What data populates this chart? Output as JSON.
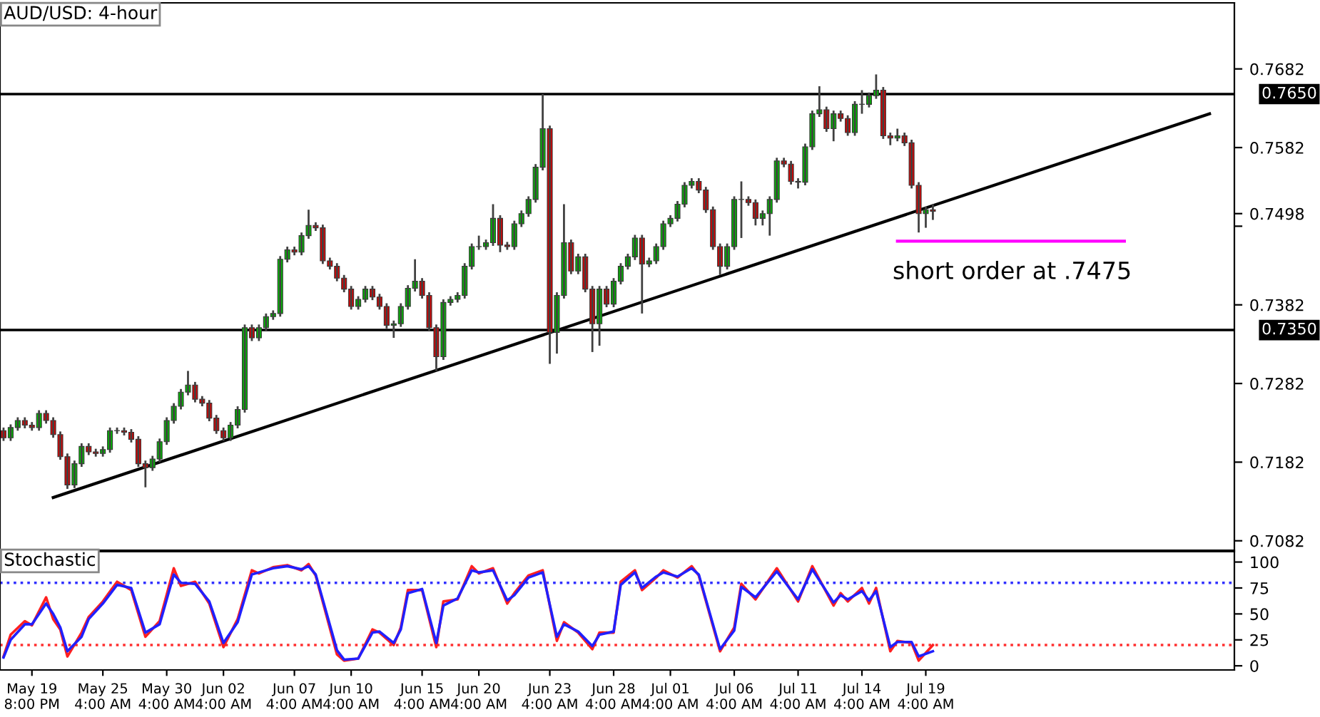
{
  "chart_data": [
    {
      "type": "candlestick",
      "title": "AUD/USD: 4-hour",
      "tick_labels": "y",
      "categories": [
        null,
        null,
        null,
        null,
        null,
        null,
        null,
        null,
        null,
        null,
        null,
        null,
        null,
        null,
        null,
        null,
        null,
        null,
        null,
        null,
        null,
        null,
        null,
        null,
        null,
        null,
        null,
        null,
        null,
        null,
        null,
        null,
        null,
        null,
        null,
        null,
        null,
        null,
        null,
        null,
        null,
        null,
        null,
        null,
        null,
        null,
        null,
        null,
        null,
        null,
        null,
        null,
        null,
        null,
        null,
        null,
        null,
        null,
        null,
        null,
        null,
        null,
        null,
        null,
        null,
        null,
        null,
        null,
        null,
        null,
        null,
        null,
        null,
        null,
        null,
        null,
        null,
        null,
        null,
        null,
        null,
        null,
        null,
        null,
        null,
        null,
        null,
        null,
        null,
        null,
        null,
        null,
        null,
        null,
        null,
        null,
        null,
        null,
        null,
        null,
        null,
        null,
        null,
        null,
        null,
        null,
        null,
        null,
        null,
        null,
        null,
        null,
        null,
        null,
        null,
        null,
        null,
        null,
        null,
        null,
        null,
        null,
        null,
        null,
        null,
        null,
        null,
        null,
        null,
        null,
        null,
        null,
        null,
        null,
        null,
        null,
        null,
        null,
        null,
        null,
        null,
        null,
        null,
        null,
        null,
        null,
        null,
        null,
        null,
        null,
        null,
        null,
        null,
        null,
        null,
        null,
        null,
        null,
        null,
        null,
        null,
        null,
        null,
        null,
        null,
        null,
        null,
        null,
        null,
        null,
        null,
        null,
        null,
        null
      ],
      "ohlc": [
        [
          0.7222,
          0.7226,
          0.7209,
          0.7213
        ],
        [
          0.7213,
          0.723,
          0.7209,
          0.7226
        ],
        [
          0.7226,
          0.7239,
          0.7222,
          0.7235
        ],
        [
          0.7235,
          0.7239,
          0.7225,
          0.7229
        ],
        [
          0.7229,
          0.7233,
          0.7222,
          0.7226
        ],
        [
          0.7226,
          0.7248,
          0.7222,
          0.7244
        ],
        [
          0.7244,
          0.7248,
          0.7231,
          0.7235
        ],
        [
          0.7235,
          0.7239,
          0.7213,
          0.7217
        ],
        [
          0.7217,
          0.7221,
          0.7185,
          0.7189
        ],
        [
          0.7189,
          0.7193,
          0.7148,
          0.7153
        ],
        [
          0.7153,
          0.7184,
          0.7149,
          0.718
        ],
        [
          0.718,
          0.7206,
          0.7176,
          0.7202
        ],
        [
          0.7202,
          0.7206,
          0.7191,
          0.7195
        ],
        [
          0.7195,
          0.7199,
          0.7189,
          0.7193
        ],
        [
          0.7193,
          0.7202,
          0.7189,
          0.7198
        ],
        [
          0.7198,
          0.7226,
          0.7194,
          0.7222
        ],
        [
          0.7222,
          0.7226,
          0.7218,
          0.7222
        ],
        [
          0.7222,
          0.7226,
          0.7216,
          0.722
        ],
        [
          0.722,
          0.7224,
          0.7207,
          0.7211
        ],
        [
          0.7211,
          0.7215,
          0.7176,
          0.718
        ],
        [
          0.718,
          0.7184,
          0.715,
          0.7175
        ],
        [
          0.7175,
          0.719,
          0.7171,
          0.7186
        ],
        [
          0.7186,
          0.7212,
          0.7182,
          0.7208
        ],
        [
          0.7208,
          0.7239,
          0.7204,
          0.7235
        ],
        [
          0.7235,
          0.7257,
          0.7231,
          0.7253
        ],
        [
          0.7253,
          0.7275,
          0.7249,
          0.7271
        ],
        [
          0.7271,
          0.7298,
          0.7267,
          0.728
        ],
        [
          0.728,
          0.7284,
          0.7258,
          0.7262
        ],
        [
          0.7262,
          0.7266,
          0.7253,
          0.7257
        ],
        [
          0.7257,
          0.7261,
          0.7234,
          0.7238
        ],
        [
          0.7238,
          0.7242,
          0.7218,
          0.7222
        ],
        [
          0.7222,
          0.7226,
          0.7209,
          0.7213
        ],
        [
          0.7213,
          0.7233,
          0.7209,
          0.7229
        ],
        [
          0.7229,
          0.7253,
          0.7225,
          0.7249
        ],
        [
          0.7249,
          0.7357,
          0.7245,
          0.7353
        ],
        [
          0.7353,
          0.7357,
          0.7336,
          0.734
        ],
        [
          0.734,
          0.7357,
          0.7336,
          0.7353
        ],
        [
          0.7353,
          0.7371,
          0.7349,
          0.7367
        ],
        [
          0.7367,
          0.7375,
          0.7363,
          0.7371
        ],
        [
          0.7371,
          0.7444,
          0.7367,
          0.744
        ],
        [
          0.744,
          0.7456,
          0.7436,
          0.7452
        ],
        [
          0.7452,
          0.7456,
          0.7445,
          0.7449
        ],
        [
          0.7449,
          0.7474,
          0.7445,
          0.747
        ],
        [
          0.747,
          0.7503,
          0.7466,
          0.7483
        ],
        [
          0.7483,
          0.7487,
          0.7476,
          0.748
        ],
        [
          0.748,
          0.7484,
          0.7434,
          0.7438
        ],
        [
          0.7438,
          0.7442,
          0.7427,
          0.7431
        ],
        [
          0.7431,
          0.7435,
          0.7412,
          0.7416
        ],
        [
          0.7416,
          0.742,
          0.7398,
          0.7402
        ],
        [
          0.7402,
          0.7406,
          0.7376,
          0.738
        ],
        [
          0.738,
          0.7393,
          0.7376,
          0.7389
        ],
        [
          0.7389,
          0.7406,
          0.7385,
          0.7402
        ],
        [
          0.7402,
          0.7406,
          0.7388,
          0.7392
        ],
        [
          0.7392,
          0.7396,
          0.7376,
          0.738
        ],
        [
          0.738,
          0.7384,
          0.7352,
          0.7356
        ],
        [
          0.7356,
          0.7362,
          0.734,
          0.7358
        ],
        [
          0.7358,
          0.7384,
          0.7354,
          0.738
        ],
        [
          0.738,
          0.7407,
          0.7376,
          0.7403
        ],
        [
          0.7403,
          0.744,
          0.7399,
          0.7412
        ],
        [
          0.7412,
          0.7416,
          0.739,
          0.7394
        ],
        [
          0.7394,
          0.7398,
          0.7349,
          0.7353
        ],
        [
          0.7353,
          0.7357,
          0.7298,
          0.7316
        ],
        [
          0.7316,
          0.7389,
          0.7312,
          0.7385
        ],
        [
          0.7385,
          0.7393,
          0.7381,
          0.7389
        ],
        [
          0.7389,
          0.7398,
          0.7385,
          0.7394
        ],
        [
          0.7394,
          0.7435,
          0.739,
          0.7431
        ],
        [
          0.7431,
          0.746,
          0.7427,
          0.7456
        ],
        [
          0.7456,
          0.747,
          0.7452,
          0.7456
        ],
        [
          0.7456,
          0.7465,
          0.7452,
          0.7461
        ],
        [
          0.7461,
          0.751,
          0.7457,
          0.7492
        ],
        [
          0.7492,
          0.7496,
          0.7449,
          0.7458
        ],
        [
          0.7458,
          0.7462,
          0.7452,
          0.7456
        ],
        [
          0.7456,
          0.7489,
          0.7452,
          0.7485
        ],
        [
          0.7485,
          0.7502,
          0.7481,
          0.7498
        ],
        [
          0.7498,
          0.752,
          0.7494,
          0.7516
        ],
        [
          0.7516,
          0.7561,
          0.7512,
          0.7557
        ],
        [
          0.7557,
          0.765,
          0.7553,
          0.7606
        ],
        [
          0.7606,
          0.761,
          0.7307,
          0.7347
        ],
        [
          0.7347,
          0.7398,
          0.732,
          0.7394
        ],
        [
          0.7394,
          0.751,
          0.739,
          0.7461
        ],
        [
          0.7461,
          0.7465,
          0.7421,
          0.7425
        ],
        [
          0.7425,
          0.7447,
          0.7421,
          0.7443
        ],
        [
          0.7443,
          0.7447,
          0.7398,
          0.7402
        ],
        [
          0.7402,
          0.7406,
          0.7322,
          0.7358
        ],
        [
          0.7358,
          0.7406,
          0.733,
          0.7402
        ],
        [
          0.7402,
          0.7406,
          0.7379,
          0.7383
        ],
        [
          0.7383,
          0.7416,
          0.7379,
          0.7412
        ],
        [
          0.7412,
          0.7435,
          0.7408,
          0.7431
        ],
        [
          0.7431,
          0.7447,
          0.7427,
          0.7443
        ],
        [
          0.7443,
          0.7471,
          0.7439,
          0.7467
        ],
        [
          0.7467,
          0.7471,
          0.7371,
          0.7434
        ],
        [
          0.7434,
          0.7442,
          0.743,
          0.7438
        ],
        [
          0.7438,
          0.746,
          0.7434,
          0.7456
        ],
        [
          0.7456,
          0.7489,
          0.7452,
          0.7485
        ],
        [
          0.7485,
          0.7496,
          0.7481,
          0.7492
        ],
        [
          0.7492,
          0.7514,
          0.7488,
          0.751
        ],
        [
          0.751,
          0.7538,
          0.7506,
          0.7534
        ],
        [
          0.7534,
          0.7543,
          0.753,
          0.7539
        ],
        [
          0.7539,
          0.7543,
          0.7524,
          0.7528
        ],
        [
          0.7528,
          0.7532,
          0.7499,
          0.7503
        ],
        [
          0.7503,
          0.7507,
          0.7452,
          0.7456
        ],
        [
          0.7456,
          0.746,
          0.742,
          0.7431
        ],
        [
          0.7431,
          0.746,
          0.7427,
          0.7456
        ],
        [
          0.7456,
          0.752,
          0.7452,
          0.7516
        ],
        [
          0.7516,
          0.7539,
          0.7467,
          0.7516
        ],
        [
          0.7516,
          0.752,
          0.7508,
          0.7512
        ],
        [
          0.7512,
          0.7516,
          0.7483,
          0.7492
        ],
        [
          0.7492,
          0.7502,
          0.7483,
          0.7498
        ],
        [
          0.7498,
          0.752,
          0.747,
          0.7516
        ],
        [
          0.7516,
          0.7569,
          0.7512,
          0.7565
        ],
        [
          0.7565,
          0.7569,
          0.7557,
          0.7561
        ],
        [
          0.7561,
          0.7565,
          0.7535,
          0.7539
        ],
        [
          0.7539,
          0.7543,
          0.753,
          0.7538
        ],
        [
          0.7538,
          0.7587,
          0.7534,
          0.7583
        ],
        [
          0.7583,
          0.7629,
          0.7579,
          0.7625
        ],
        [
          0.7625,
          0.766,
          0.7621,
          0.763
        ],
        [
          0.763,
          0.7634,
          0.7602,
          0.7606
        ],
        [
          0.7606,
          0.7629,
          0.759,
          0.7625
        ],
        [
          0.7625,
          0.7629,
          0.7615,
          0.7619
        ],
        [
          0.7619,
          0.7623,
          0.7597,
          0.7601
        ],
        [
          0.7601,
          0.7641,
          0.7597,
          0.7637
        ],
        [
          0.7637,
          0.7655,
          0.7625,
          0.7637
        ],
        [
          0.7637,
          0.7652,
          0.7633,
          0.7648
        ],
        [
          0.7648,
          0.7675,
          0.7644,
          0.7655
        ],
        [
          0.7655,
          0.7659,
          0.7593,
          0.7597
        ],
        [
          0.7597,
          0.7601,
          0.7585,
          0.7594
        ],
        [
          0.7594,
          0.7606,
          0.759,
          0.7597
        ],
        [
          0.7597,
          0.7601,
          0.7584,
          0.7588
        ],
        [
          0.7588,
          0.7592,
          0.753,
          0.7534
        ],
        [
          0.7534,
          0.7538,
          0.7474,
          0.7498
        ],
        [
          0.7498,
          0.7507,
          0.748,
          0.7503
        ],
        [
          0.7503,
          0.751,
          0.749,
          0.7501
        ],
        null,
        null,
        null,
        null,
        null,
        null,
        null,
        null,
        null,
        null,
        null,
        null,
        null,
        null,
        null,
        null,
        null,
        null,
        null,
        null,
        null,
        null,
        null,
        null,
        null,
        null,
        null,
        null,
        null,
        null,
        null,
        null,
        null,
        null,
        null,
        null,
        null,
        null,
        null,
        null,
        null,
        null
      ],
      "colors": [
        "#e00000",
        "#00c000",
        "#00c000",
        "#e00000",
        "#e00000",
        "#00c000",
        "#e00000",
        "#e00000",
        "#e00000",
        "#e00000",
        "#00c000",
        "#00c000",
        "#e00000",
        "#e00000",
        "#00c000",
        "#00c000",
        "#00c000",
        "#e00000",
        "#e00000",
        "#e00000",
        "#e00000",
        "#00c000",
        "#00c000",
        "#00c000",
        "#00c000",
        "#00c000",
        "#00c000",
        "#e00000",
        "#e00000",
        "#e00000",
        "#e00000",
        "#e00000",
        "#00c000",
        "#00c000",
        "#00c000",
        "#e00000",
        "#00c000",
        "#00c000",
        "#00c000",
        "#00c000",
        "#00c000",
        "#e00000",
        "#00c000",
        "#00c000",
        "#e00000",
        "#e00000",
        "#e00000",
        "#e00000",
        "#e00000",
        "#e00000",
        "#00c000",
        "#00c000",
        "#e00000",
        "#e00000",
        "#e00000",
        "#00c000",
        "#00c000",
        "#00c000",
        "#00c000",
        "#e00000",
        "#e00000",
        "#e00000",
        "#00c000",
        "#00c000",
        "#00c000",
        "#00c000",
        "#00c000",
        "#00c000",
        "#00c000",
        "#00c000",
        "#e00000",
        "#e00000",
        "#00c000",
        "#00c000",
        "#00c000",
        "#00c000",
        "#00c000",
        "#e00000",
        "#00c000",
        "#00c000",
        "#e00000",
        "#00c000",
        "#e00000",
        "#e00000",
        "#00c000",
        "#e00000",
        "#00c000",
        "#00c000",
        "#00c000",
        "#00c000",
        "#e00000",
        "#00c000",
        "#00c000",
        "#00c000",
        "#00c000",
        "#00c000",
        "#00c000",
        "#00c000",
        "#e00000",
        "#e00000",
        "#e00000",
        "#e00000",
        "#00c000",
        "#00c000",
        "#00c000",
        "#e00000",
        "#e00000",
        "#00c000",
        "#00c000",
        "#00c000",
        "#e00000",
        "#e00000",
        "#e00000",
        "#00c000",
        "#00c000",
        "#00c000",
        "#e00000",
        "#00c000",
        "#e00000",
        "#e00000",
        "#00c000",
        "#00c000",
        "#00c000",
        "#00c000",
        "#e00000",
        "#e00000",
        "#00c000",
        "#e00000",
        "#e00000",
        "#e00000",
        "#00c000",
        "#e00000",
        null,
        null,
        null,
        null,
        null,
        null,
        null,
        null,
        null,
        null,
        null,
        null,
        null,
        null,
        null,
        null,
        null,
        null,
        null,
        null,
        null,
        null,
        null,
        null,
        null,
        null,
        null,
        null,
        null,
        null,
        null,
        null,
        null,
        null,
        null,
        null,
        null,
        null,
        null,
        null,
        null,
        null
      ],
      "series": [
        {
          "type": "line",
          "color": "#000000",
          "values": [
            null,
            null,
            null,
            null,
            null,
            null,
            null,
            0.7137,
            null,
            null,
            null,
            null,
            null,
            null,
            null,
            null,
            null,
            null,
            null,
            null,
            null,
            null,
            null,
            null,
            null,
            null,
            null,
            null,
            null,
            null,
            null,
            null,
            null,
            null,
            null,
            null,
            null,
            null,
            null,
            null,
            null,
            null,
            null,
            null,
            null,
            null,
            null,
            null,
            null,
            null,
            null,
            null,
            null,
            null,
            null,
            null,
            null,
            null,
            null,
            null,
            null,
            null,
            null,
            null,
            null,
            null,
            null,
            null,
            null,
            null,
            null,
            null,
            null,
            null,
            null,
            null,
            null,
            null,
            null,
            null,
            null,
            null,
            null,
            null,
            null,
            null,
            null,
            null,
            null,
            null,
            null,
            null,
            null,
            null,
            null,
            null,
            null,
            null,
            null,
            null,
            null,
            null,
            null,
            null,
            null,
            null,
            null,
            null,
            null,
            null,
            null,
            null,
            null,
            null,
            null,
            null,
            null,
            null,
            null,
            null,
            null,
            null,
            null,
            null,
            null,
            null,
            null,
            null,
            null,
            null,
            null,
            null,
            null,
            null,
            null,
            null,
            null,
            null,
            null,
            null,
            null,
            null,
            null,
            null,
            null,
            null,
            null,
            null,
            null,
            null,
            null,
            null,
            null,
            null,
            null,
            null,
            null,
            null,
            null,
            null,
            null,
            null,
            null,
            null,
            null,
            null,
            null,
            null,
            null,
            null,
            0.7625,
            null,
            null,
            null
          ]
        },
        {
          "type": "line",
          "color": "#ff00ff",
          "values": [
            null,
            null,
            null,
            null,
            null,
            null,
            null,
            null,
            null,
            null,
            null,
            null,
            null,
            null,
            null,
            null,
            null,
            null,
            null,
            null,
            null,
            null,
            null,
            null,
            null,
            null,
            null,
            null,
            null,
            null,
            null,
            null,
            null,
            null,
            null,
            null,
            null,
            null,
            null,
            null,
            null,
            null,
            null,
            null,
            null,
            null,
            null,
            null,
            null,
            null,
            null,
            null,
            null,
            null,
            null,
            null,
            null,
            null,
            null,
            null,
            null,
            null,
            null,
            null,
            null,
            null,
            null,
            null,
            null,
            null,
            null,
            null,
            null,
            null,
            null,
            null,
            null,
            null,
            null,
            null,
            null,
            null,
            null,
            null,
            null,
            null,
            null,
            null,
            null,
            null,
            null,
            null,
            null,
            null,
            null,
            null,
            null,
            null,
            null,
            null,
            null,
            null,
            null,
            null,
            null,
            null,
            null,
            null,
            null,
            null,
            null,
            null,
            null,
            null,
            null,
            null,
            null,
            null,
            null,
            null,
            null,
            null,
            null,
            null,
            null,
            null,
            0.7463,
            null,
            null,
            null,
            null,
            null,
            null,
            null,
            null,
            null,
            null,
            null,
            null,
            null,
            null,
            null,
            null,
            null,
            null,
            null,
            null,
            null,
            null,
            null,
            null,
            null,
            null,
            null,
            null,
            null,
            null,
            null,
            0.7463,
            null,
            null,
            null,
            null,
            null,
            null,
            null,
            null,
            null,
            null,
            null,
            null,
            null,
            null,
            null
          ]
        }
      ],
      "ref_lines": [
        {
          "axis": "y",
          "value": 0.765,
          "label": "0.7650",
          "color": "#000000"
        },
        {
          "axis": "y",
          "value": 0.735,
          "label": "0.7350",
          "color": "#000000"
        }
      ],
      "annotations": [
        {
          "text": "short order at .7475",
          "y": 0.7463
        }
      ],
      "ylim": [
        0.707,
        0.7766
      ],
      "yticks": [
        0.7082,
        0.7182,
        0.7282,
        0.7382,
        {
          "value": 0.7482,
          "label": null
        },
        0.7498,
        0.7582,
        0.7682
      ]
    },
    {
      "type": "line",
      "title": "Stochastic",
      "categories": [
        null,
        null,
        null,
        null,
        "May 19\n8:00 PM",
        null,
        null,
        null,
        null,
        null,
        null,
        null,
        null,
        null,
        "May 25\n4:00 AM",
        null,
        null,
        null,
        null,
        null,
        null,
        null,
        null,
        "May 30\n4:00 AM",
        null,
        null,
        null,
        null,
        null,
        null,
        null,
        "Jun 02\n4:00 AM",
        null,
        null,
        null,
        null,
        null,
        null,
        null,
        null,
        null,
        "Jun 07\n4:00 AM",
        null,
        null,
        null,
        null,
        null,
        null,
        null,
        "Jun 10\n4:00 AM",
        null,
        null,
        null,
        null,
        null,
        null,
        null,
        null,
        null,
        "Jun 15\n4:00 AM",
        null,
        null,
        null,
        null,
        null,
        null,
        null,
        "Jun 20\n4:00 AM",
        null,
        null,
        null,
        null,
        null,
        null,
        null,
        null,
        null,
        "Jun 23\n4:00 AM",
        null,
        null,
        null,
        null,
        null,
        null,
        null,
        null,
        "Jun 28\n4:00 AM",
        null,
        null,
        null,
        null,
        null,
        null,
        null,
        "Jul 01\n4:00 AM",
        null,
        null,
        null,
        null,
        null,
        null,
        null,
        null,
        "Jul 06\n4:00 AM",
        null,
        null,
        null,
        null,
        null,
        null,
        null,
        null,
        "Jul 11\n4:00 AM",
        null,
        null,
        null,
        null,
        null,
        null,
        null,
        null,
        "Jul 14\n4:00 AM",
        null,
        null,
        null,
        null,
        null,
        null,
        null,
        null,
        "Jul 19\n4:00 AM",
        null,
        null,
        null,
        null,
        null,
        null,
        null,
        null,
        null,
        null,
        null,
        null,
        null,
        null,
        null,
        null,
        null,
        null,
        null,
        null,
        null,
        null,
        null,
        null,
        null,
        null,
        null,
        null,
        null,
        null,
        null,
        null,
        null,
        null,
        null,
        null,
        null,
        null,
        null,
        null,
        null,
        null,
        null
      ],
      "series": [
        {
          "color": "#ff2020",
          "values": [
            9,
            30,
            null,
            43,
            39,
            null,
            66,
            45,
            35,
            9,
            null,
            32,
            47,
            null,
            62,
            null,
            81,
            null,
            73,
            null,
            28,
            null,
            43,
            null,
            94,
            77,
            null,
            81,
            null,
            60,
            null,
            18,
            null,
            45,
            null,
            92,
            89,
            null,
            95,
            null,
            97,
            null,
            92,
            98,
            87,
            null,
            null,
            11,
            5,
            null,
            7,
            null,
            35,
            32,
            null,
            20,
            37,
            73,
            null,
            73,
            null,
            18,
            62,
            null,
            64,
            null,
            96,
            89,
            null,
            94,
            null,
            60,
            70,
            null,
            87,
            null,
            92,
            null,
            24,
            42,
            null,
            32,
            null,
            16,
            32,
            null,
            32,
            81,
            null,
            92,
            73,
            null,
            85,
            92,
            null,
            85,
            null,
            96,
            87,
            null,
            null,
            14,
            null,
            37,
            79,
            null,
            64,
            null,
            null,
            94,
            null,
            null,
            62,
            null,
            96,
            null,
            null,
            58,
            70,
            62,
            null,
            75,
            60,
            75,
            null,
            14,
            24,
            null,
            22,
            5,
            null,
            20,
            null,
            null,
            null,
            null,
            null,
            null,
            null,
            null,
            null,
            null,
            null,
            null,
            null,
            null,
            null,
            null,
            null,
            null,
            null,
            null,
            null,
            null,
            null,
            null,
            null,
            null,
            null,
            null,
            null,
            null,
            null,
            null,
            null,
            null,
            null,
            null,
            null,
            null,
            null,
            null,
            null,
            null
          ]
        },
        {
          "color": "#2020ff",
          "values": [
            8,
            25,
            null,
            40,
            40,
            null,
            60,
            50,
            37,
            14,
            null,
            28,
            45,
            null,
            60,
            null,
            78,
            null,
            75,
            null,
            32,
            null,
            40,
            null,
            88,
            80,
            null,
            79,
            null,
            62,
            null,
            22,
            null,
            42,
            null,
            88,
            90,
            null,
            94,
            null,
            96,
            null,
            93,
            96,
            88,
            null,
            null,
            15,
            6,
            null,
            7,
            null,
            32,
            33,
            null,
            22,
            35,
            70,
            null,
            74,
            null,
            22,
            58,
            null,
            65,
            null,
            92,
            90,
            null,
            92,
            null,
            63,
            68,
            null,
            85,
            null,
            90,
            null,
            28,
            40,
            null,
            33,
            null,
            19,
            30,
            null,
            33,
            78,
            null,
            90,
            75,
            null,
            86,
            90,
            null,
            86,
            null,
            94,
            88,
            null,
            null,
            16,
            null,
            34,
            76,
            null,
            66,
            null,
            null,
            91,
            null,
            null,
            64,
            null,
            93,
            null,
            null,
            61,
            68,
            64,
            null,
            72,
            63,
            72,
            null,
            18,
            23,
            null,
            23,
            9,
            null,
            14,
            null,
            null,
            null,
            null,
            null,
            null,
            null,
            null,
            null,
            null,
            null,
            null,
            null,
            null,
            null,
            null,
            null,
            null,
            null,
            null,
            null,
            null,
            null,
            null,
            null,
            null,
            null,
            null,
            null,
            null,
            null,
            null,
            null,
            null,
            null,
            null,
            null,
            null,
            null,
            null,
            null,
            null
          ]
        }
      ],
      "ref_lines": [
        {
          "axis": "y",
          "value": 80,
          "color": "#3030ff",
          "line_style": "dotted"
        },
        {
          "axis": "y",
          "value": 20,
          "color": "#ff3030",
          "line_style": "dotted"
        }
      ],
      "ylim": [
        -4,
        110
      ],
      "yticks": [
        0,
        25,
        50,
        75,
        100
      ]
    }
  ]
}
